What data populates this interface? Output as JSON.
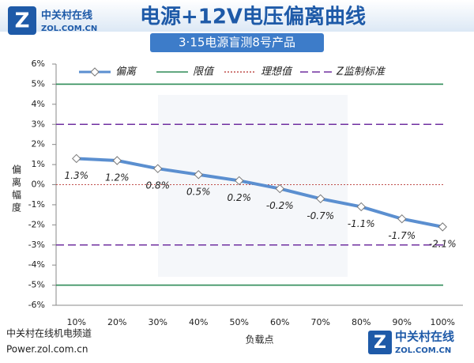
{
  "header": {
    "logo_name": "中关村在线",
    "logo_url": "ZOL.COM.CN"
  },
  "footer": {
    "channel": "中关村在线机电频道",
    "url": "Power.zol.com.cn",
    "logo_name": "中关村在线",
    "logo_url": "ZOL.COM.CN"
  },
  "chart_data": {
    "type": "line",
    "title": "电源+12V电压偏离曲线",
    "subtitle": "3·15电源盲测8号产品",
    "x_label": "负载点",
    "y_label": "偏离幅度",
    "categories": [
      "10%",
      "20%",
      "30%",
      "40%",
      "50%",
      "60%",
      "70%",
      "80%",
      "90%",
      "100%"
    ],
    "series": [
      {
        "name": "偏离",
        "color": "#5b8fd0",
        "values": [
          1.3,
          1.2,
          0.8,
          0.5,
          0.2,
          -0.2,
          -0.7,
          -1.1,
          -1.7,
          -2.1
        ],
        "value_labels": [
          "1.3%",
          "1.2%",
          "0.8%",
          "0.5%",
          "0.2%",
          "-0.2%",
          "-0.7%",
          "-1.1%",
          "-1.7%",
          "-2.1%"
        ]
      }
    ],
    "reference_lines": [
      {
        "name": "限值",
        "color": "#2e8b57",
        "style": "solid",
        "values": [
          5,
          -5
        ]
      },
      {
        "name": "理想值",
        "color": "#c0504d",
        "style": "dotted",
        "values": [
          0
        ]
      },
      {
        "name": "Z监制标准",
        "color": "#7030a0",
        "style": "dashed",
        "values": [
          3,
          -3
        ]
      }
    ],
    "ylim": [
      -6,
      6
    ],
    "yticks": [
      {
        "value": -6,
        "label": "-6%"
      },
      {
        "value": -5,
        "label": "-5%"
      },
      {
        "value": -4,
        "label": "-4%"
      },
      {
        "value": -3,
        "label": "-3%"
      },
      {
        "value": -2,
        "label": "-2%"
      },
      {
        "value": -1,
        "label": "-1%"
      },
      {
        "value": 0,
        "label": "0%"
      },
      {
        "value": 1,
        "label": "1%"
      },
      {
        "value": 2,
        "label": "2%"
      },
      {
        "value": 3,
        "label": "3%"
      },
      {
        "value": 4,
        "label": "4%"
      },
      {
        "value": 5,
        "label": "5%"
      },
      {
        "value": 6,
        "label": "6%"
      }
    ],
    "legend": "top"
  }
}
